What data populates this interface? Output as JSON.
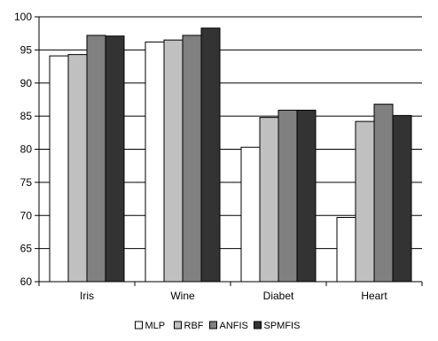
{
  "chart_data": {
    "type": "bar",
    "title": "",
    "xlabel": "",
    "ylabel": "",
    "categories": [
      "Iris",
      "Wine",
      "Diabet",
      "Heart"
    ],
    "series": [
      {
        "name": "MLP",
        "values": [
          94.1,
          96.2,
          80.3,
          69.7
        ],
        "color": "#ffffff"
      },
      {
        "name": "RBF",
        "values": [
          94.3,
          96.5,
          84.8,
          84.2
        ],
        "color": "#c0c0c0"
      },
      {
        "name": "ANFIS",
        "values": [
          97.2,
          97.2,
          85.9,
          86.8
        ],
        "color": "#808080"
      },
      {
        "name": "SPMFIS",
        "values": [
          97.1,
          98.3,
          85.9,
          85.1
        ],
        "color": "#333333"
      }
    ],
    "ylim": [
      60,
      100
    ],
    "yticks": [
      60,
      65,
      70,
      75,
      80,
      85,
      90,
      95,
      100
    ],
    "grid": true,
    "legend_position": "bottom"
  }
}
